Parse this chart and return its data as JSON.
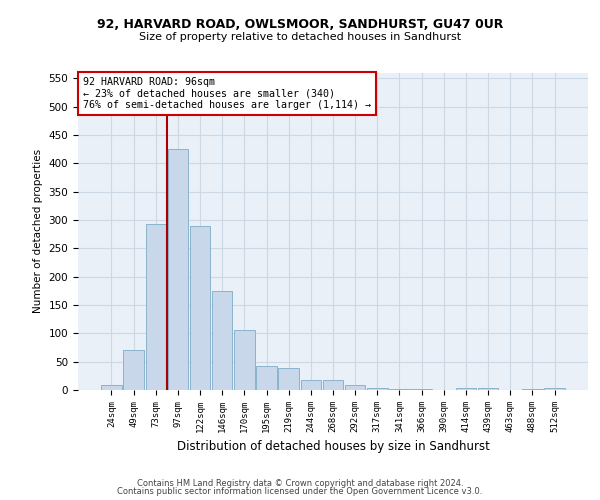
{
  "title1": "92, HARVARD ROAD, OWLSMOOR, SANDHURST, GU47 0UR",
  "title2": "Size of property relative to detached houses in Sandhurst",
  "xlabel": "Distribution of detached houses by size in Sandhurst",
  "ylabel": "Number of detached properties",
  "categories": [
    "24sqm",
    "49sqm",
    "73sqm",
    "97sqm",
    "122sqm",
    "146sqm",
    "170sqm",
    "195sqm",
    "219sqm",
    "244sqm",
    "268sqm",
    "292sqm",
    "317sqm",
    "341sqm",
    "366sqm",
    "390sqm",
    "414sqm",
    "439sqm",
    "463sqm",
    "488sqm",
    "512sqm"
  ],
  "values": [
    8,
    70,
    292,
    425,
    290,
    175,
    105,
    43,
    38,
    18,
    18,
    8,
    4,
    2,
    1,
    0,
    4,
    4,
    0,
    1,
    3
  ],
  "bar_color": "#c8d8ea",
  "bar_edge_color": "#8ab4cc",
  "grid_color": "#ccd8e4",
  "background_color": "#eaf0f8",
  "property_line_color": "#aa0000",
  "annotation_text": "92 HARVARD ROAD: 96sqm\n← 23% of detached houses are smaller (340)\n76% of semi-detached houses are larger (1,114) →",
  "annotation_box_color": "#ffffff",
  "annotation_box_edge_color": "#cc0000",
  "footer1": "Contains HM Land Registry data © Crown copyright and database right 2024.",
  "footer2": "Contains public sector information licensed under the Open Government Licence v3.0.",
  "ylim": [
    0,
    560
  ],
  "yticks": [
    0,
    50,
    100,
    150,
    200,
    250,
    300,
    350,
    400,
    450,
    500,
    550
  ]
}
